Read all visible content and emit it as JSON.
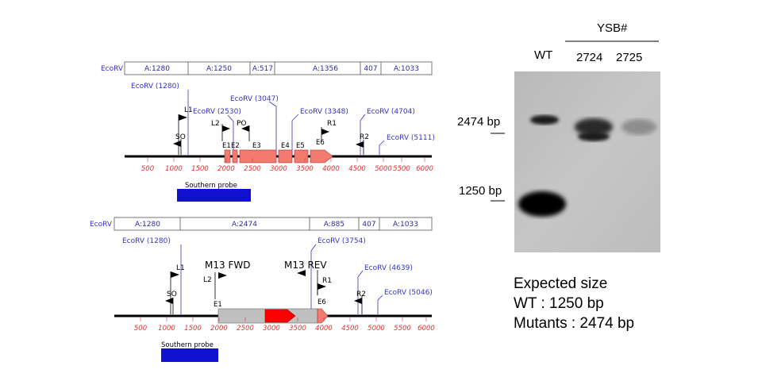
{
  "maps": [
    {
      "segment_label": "EcoRV",
      "segments": [
        "A:1280",
        "A:1250",
        "A:517",
        "A:1356",
        "407",
        "A:1033"
      ],
      "sites": [
        "EcoRV (1280)",
        "EcoRV (2530)",
        "EcoRV (3047)",
        "EcoRV (3348)",
        "EcoRV (4704)",
        "EcoRV (5111)"
      ],
      "primers": [
        "L1",
        "L2",
        "PO",
        "SO",
        "R1",
        "R2"
      ],
      "exons": [
        "E1",
        "E2",
        "E3",
        "E4",
        "E5",
        "E6"
      ],
      "ticks": [
        "500",
        "1000",
        "1500",
        "2000",
        "2500",
        "3000",
        "3500",
        "4000",
        "4500",
        "5000",
        "5500",
        "6000"
      ],
      "probe_label": "Southern probe"
    },
    {
      "segment_label": "EcoRV",
      "segments": [
        "A:1280",
        "A:2474",
        "A:885",
        "407",
        "A:1033"
      ],
      "sites": [
        "EcoRV (1280)",
        "EcoRV (3754)",
        "EcoRV (4639)",
        "EcoRV (5046)"
      ],
      "primers": [
        "L1",
        "L2",
        "M13 FWD",
        "M13 REV",
        "SO",
        "R1",
        "R2"
      ],
      "exons": [
        "E1",
        "E6"
      ],
      "ticks": [
        "500",
        "1000",
        "1500",
        "2000",
        "2500",
        "3000",
        "3500",
        "4000",
        "4500",
        "5000",
        "5500",
        "6000"
      ],
      "probe_label": "Southern probe"
    }
  ],
  "gel": {
    "group_label": "YSB#",
    "lanes": [
      "WT",
      "2724",
      "2725"
    ],
    "markers": [
      "2474 bp",
      "1250 bp"
    ]
  },
  "expected": {
    "title": "Expected size",
    "wt": "WT : 1250 bp",
    "mutants": "Mutants : 2474 bp"
  },
  "colors": {
    "map_blue": "#3333cc",
    "exon_fill": "#f27a6e",
    "cassette_grey": "#c0c0c0",
    "marker_red": "#ff0000",
    "tick_red": "#e03030",
    "probe_blue": "#1010d0",
    "segment_text": "#2a2a9a"
  }
}
